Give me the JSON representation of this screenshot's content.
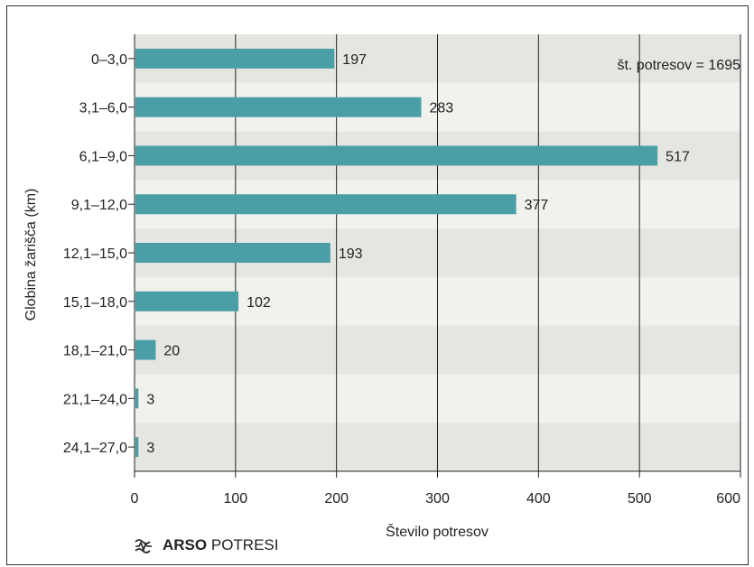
{
  "chart_data": {
    "type": "bar",
    "orientation": "horizontal",
    "categories": [
      "0–3,0",
      "3,1–6,0",
      "6,1–9,0",
      "9,1–12,0",
      "12,1–15,0",
      "15,1–18,0",
      "18,1–21,0",
      "21,1–24,0",
      "24,1–27,0"
    ],
    "values": [
      197,
      283,
      517,
      377,
      193,
      102,
      20,
      3,
      3
    ],
    "data_labels": [
      "197",
      "283",
      "517",
      "377",
      "193",
      "102",
      "20",
      "3",
      "3"
    ],
    "xlabel": "Število potresov",
    "ylabel": "Globina žarišča (km)",
    "xlim": [
      0,
      600
    ],
    "xticks": [
      0,
      100,
      200,
      300,
      400,
      500,
      600
    ],
    "xtick_labels": [
      "0",
      "100",
      "200",
      "300",
      "400",
      "500",
      "600"
    ],
    "grid": "vertical",
    "annotation": "št. potresov = 1695",
    "annotation_position": "top-right",
    "bar_color": "#4a9fa6",
    "stripe_colors": [
      "#e5e5e1",
      "#f1f1ee"
    ]
  },
  "logo": {
    "icon": "seismograph-wave-icon",
    "brand": "ARSO",
    "product": "POTRESI"
  }
}
